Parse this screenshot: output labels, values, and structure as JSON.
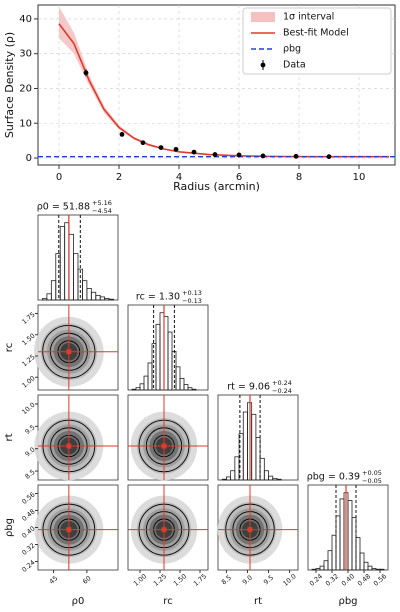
{
  "chart_data": [
    {
      "type": "line",
      "xlabel": "Radius (arcmin)",
      "ylabel": "Surface Density (ρ)",
      "xlim": [
        -0.7,
        11.2
      ],
      "ylim": [
        -2,
        44
      ],
      "xticks": [
        0,
        2,
        4,
        6,
        8,
        10
      ],
      "yticks": [
        0,
        10,
        20,
        30,
        40
      ],
      "grid": true,
      "legend": "upper right",
      "x": [
        0,
        0.5,
        1,
        1.5,
        2,
        2.5,
        3,
        3.5,
        4,
        5,
        6,
        7,
        8,
        9,
        10,
        11
      ],
      "series": [
        {
          "type": "band",
          "name": "1σ interval",
          "color": "#f5c0c0",
          "upper": [
            43.5,
            36,
            24,
            15,
            9.4,
            6.1,
            4.1,
            2.8,
            1.95,
            1.1,
            0.7,
            0.52,
            0.44,
            0.42,
            0.42,
            0.42
          ],
          "lower": [
            34.5,
            30,
            21,
            13,
            8.2,
            5.3,
            3.5,
            2.4,
            1.65,
            0.9,
            0.58,
            0.44,
            0.38,
            0.36,
            0.36,
            0.36
          ]
        },
        {
          "type": "line",
          "name": "Best-fit Model",
          "color": "#e0392b",
          "values": [
            38.6,
            32.9,
            22.4,
            14.0,
            8.8,
            5.7,
            3.8,
            2.6,
            1.8,
            1.0,
            0.64,
            0.48,
            0.41,
            0.39,
            0.39,
            0.39
          ]
        },
        {
          "type": "hline",
          "name": "ρbg",
          "color": "#1f3fd6",
          "value": 0.39
        },
        {
          "type": "errorbar",
          "name": "Data",
          "color": "#000000",
          "x": [
            0.9,
            2.1,
            2.8,
            3.4,
            3.9,
            4.5,
            5.2,
            6.0,
            6.8,
            7.9,
            9.0
          ],
          "values": [
            24.5,
            6.8,
            4.4,
            3.0,
            2.5,
            1.7,
            1.0,
            0.9,
            0.6,
            0.5,
            0.4
          ],
          "errors": [
            1.0,
            0.6,
            0.4,
            0.3,
            0.3,
            0.2,
            0.2,
            0.2,
            0.1,
            0.1,
            0.1
          ]
        }
      ]
    },
    {
      "type": "corner",
      "median_color": "#e0392b",
      "parameters": [
        {
          "label": "ρ0",
          "title": "ρ0 = 51.88",
          "err_plus_label": "+5.16",
          "err_minus_label": "−4.54",
          "median": 51.88,
          "err_plus": 5.16,
          "err_minus": 4.54,
          "lim": [
            38,
            74
          ],
          "ticks": [
            45,
            60
          ],
          "bins": [
            40,
            42,
            44,
            46,
            48,
            50,
            52,
            54,
            56,
            58,
            60,
            62,
            64,
            66,
            68,
            70,
            72
          ],
          "counts": [
            2,
            8,
            25,
            60,
            95,
            100,
            85,
            60,
            40,
            25,
            15,
            10,
            6,
            4,
            2,
            1
          ]
        },
        {
          "label": "rc",
          "title": "rc = 1.30",
          "err_plus_label": "+0.13",
          "err_minus_label": "−0.13",
          "median": 1.3,
          "err_plus": 0.13,
          "err_minus": 0.13,
          "lim": [
            0.85,
            1.85
          ],
          "ticks": [
            {
              "value": 1,
              "label": "1.00"
            },
            1.25,
            {
              "value": 1.5,
              "label": "1.50"
            },
            1.75
          ],
          "bins": [
            0.9,
            0.95,
            1.0,
            1.05,
            1.1,
            1.15,
            1.2,
            1.25,
            1.3,
            1.35,
            1.4,
            1.45,
            1.5,
            1.55,
            1.6,
            1.65,
            1.7
          ],
          "counts": [
            1,
            3,
            8,
            18,
            35,
            60,
            85,
            100,
            95,
            75,
            50,
            30,
            15,
            7,
            3,
            1
          ]
        },
        {
          "label": "rt",
          "title": "rt = 9.06",
          "err_plus_label": "+0.24",
          "err_minus_label": "−0.24",
          "median": 9.06,
          "err_plus": 0.24,
          "err_minus": 0.24,
          "lim": [
            8.3,
            10.2
          ],
          "ticks": [
            8.5,
            {
              "value": 9,
              "label": "9.0"
            },
            9.5,
            {
              "value": 10,
              "label": "10.0"
            }
          ],
          "bins": [
            8.4,
            8.5,
            8.6,
            8.7,
            8.8,
            8.9,
            9.0,
            9.1,
            9.2,
            9.3,
            9.4,
            9.5,
            9.6,
            9.7,
            9.8
          ],
          "counts": [
            1,
            4,
            12,
            30,
            60,
            88,
            100,
            85,
            55,
            28,
            12,
            5,
            2,
            1
          ]
        },
        {
          "label": "ρbg",
          "title": "ρbg = 0.39",
          "err_plus_label": "+0.05",
          "err_minus_label": "−0.05",
          "median": 0.39,
          "err_plus": 0.05,
          "err_minus": 0.05,
          "lim": [
            0.2,
            0.6
          ],
          "ticks": [
            0.24,
            0.32,
            {
              "value": 0.4,
              "label": "0.40"
            },
            0.48,
            0.56
          ],
          "bins": [
            0.22,
            0.24,
            0.26,
            0.28,
            0.3,
            0.32,
            0.34,
            0.36,
            0.38,
            0.4,
            0.42,
            0.44,
            0.46,
            0.48,
            0.5,
            0.52,
            0.54,
            0.56,
            0.58
          ],
          "counts": [
            1,
            2,
            5,
            12,
            25,
            45,
            70,
            92,
            100,
            90,
            68,
            42,
            22,
            10,
            5,
            2,
            1,
            1
          ]
        }
      ]
    }
  ]
}
